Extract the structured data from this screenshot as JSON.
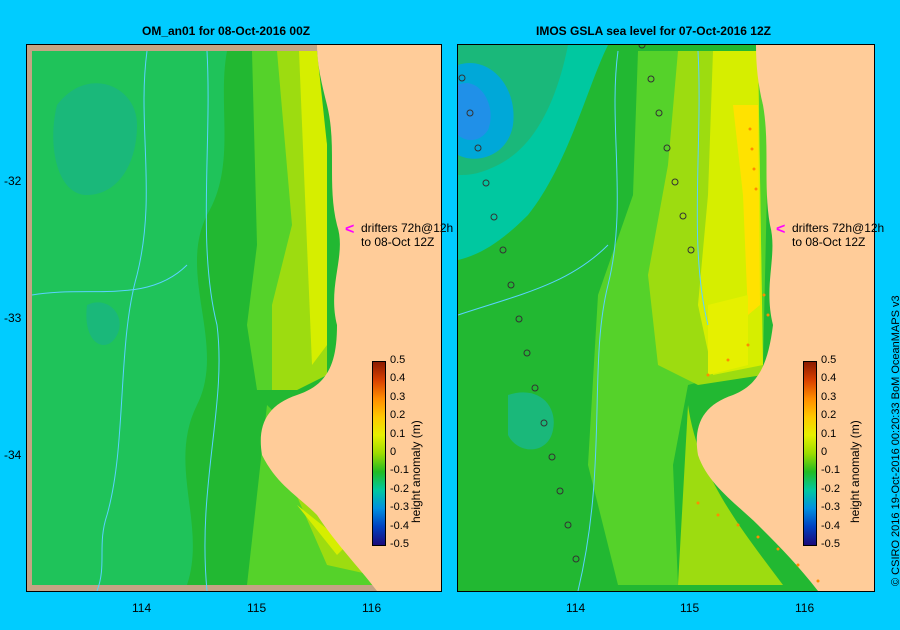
{
  "left_panel": {
    "title": "OM_an01  for 08-Oct-2016 00Z",
    "drifter_line1": "drifters 72h@12h",
    "drifter_line2": "to 08-Oct 12Z",
    "colorbar_title": "height anomaly (m)"
  },
  "right_panel": {
    "title": "IMOS GSLA sea level  for 07-Oct-2016 12Z",
    "drifter_line1": "drifters 72h@12h",
    "drifter_line2": "to 08-Oct 12Z",
    "colorbar_title": "height anomaly (m)"
  },
  "y_labels": [
    "-32",
    "-33",
    "-34"
  ],
  "x_labels": [
    "114",
    "115",
    "116"
  ],
  "colorbar_ticks": [
    "0.5",
    "0.4",
    "0.3",
    "0.2",
    "0.1",
    "0",
    "-0.1",
    "-0.2",
    "-0.3",
    "-0.4",
    "-0.5"
  ],
  "colorbar_colors": [
    "#8b1a00",
    "#d94100",
    "#ff8c00",
    "#ffc800",
    "#e6f000",
    "#9ddc00",
    "#22bb22",
    "#00c8a0",
    "#0090e0",
    "#0040c0",
    "#1a0a7a"
  ],
  "credit": "© CSIRO 2016   19-Oct-2016 00:20:33 BoM OceanMAPS v3",
  "colors": {
    "background": "#00ccff",
    "land": "#ffcc99",
    "coast": "#c4a484",
    "drifter_arrow": "#ff00ff"
  }
}
